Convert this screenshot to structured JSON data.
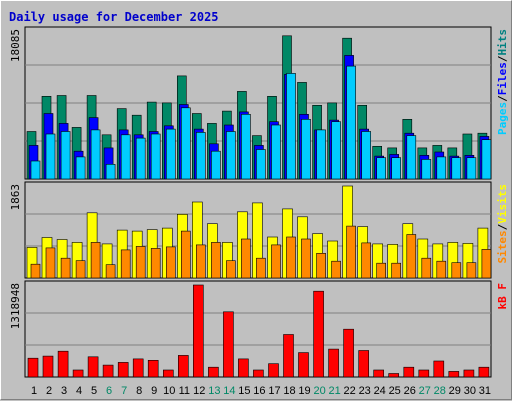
{
  "chart_data": [
    {
      "type": "bar",
      "title": "Daily usage for December 2025",
      "ymax_label": "18085",
      "categories": [
        "1",
        "2",
        "3",
        "4",
        "5",
        "6",
        "7",
        "8",
        "9",
        "10",
        "11",
        "12",
        "13",
        "14",
        "15",
        "16",
        "17",
        "18",
        "19",
        "20",
        "21",
        "22",
        "23",
        "24",
        "25",
        "26",
        "27",
        "28",
        "29",
        "30",
        "31"
      ],
      "weekend_days": [
        "6",
        "7",
        "13",
        "14",
        "20",
        "21",
        "27",
        "28"
      ],
      "legend": [
        {
          "text": "Pages",
          "color": "#00ccff"
        },
        {
          "text": "/",
          "color": "#000000"
        },
        {
          "text": "Files",
          "color": "#0000ff"
        },
        {
          "text": "/",
          "color": "#000000"
        },
        {
          "text": "Hits",
          "color": "#008080"
        }
      ],
      "ylim": [
        0,
        18085
      ],
      "series": [
        {
          "name": "Hits",
          "color": "#008866",
          "values": [
            5800,
            10100,
            10200,
            6300,
            10200,
            5400,
            8600,
            7800,
            9400,
            9300,
            12600,
            8000,
            6800,
            8300,
            10700,
            5300,
            10100,
            17500,
            11800,
            9000,
            9300,
            17200,
            9000,
            4000,
            3800,
            7300,
            3800,
            4100,
            3800,
            5500,
            5600
          ]
        },
        {
          "name": "Files",
          "color": "#0000ff",
          "values": [
            4100,
            8000,
            6800,
            3400,
            7500,
            3800,
            6000,
            5400,
            5800,
            6500,
            9100,
            6100,
            4300,
            6600,
            8200,
            4100,
            7000,
            12800,
            7900,
            6000,
            7200,
            15100,
            6100,
            2800,
            3000,
            5600,
            2900,
            3300,
            2800,
            2900,
            5200
          ]
        },
        {
          "name": "Pages",
          "color": "#00ccff",
          "values": [
            2200,
            5500,
            5800,
            2700,
            6000,
            1800,
            5400,
            5000,
            5500,
            6100,
            8700,
            5700,
            3400,
            5800,
            7900,
            3600,
            6600,
            12900,
            7300,
            6000,
            7000,
            13800,
            5800,
            2600,
            2600,
            5300,
            2400,
            2700,
            2600,
            2600,
            4800
          ]
        }
      ]
    },
    {
      "type": "bar",
      "ymax_label": "1863",
      "legend": [
        {
          "text": "Sites",
          "color": "#ff8800"
        },
        {
          "text": "/",
          "color": "#000000"
        },
        {
          "text": "Visits",
          "color": "#ffff00"
        }
      ],
      "ylim": [
        0,
        1863
      ],
      "series": [
        {
          "name": "Visits",
          "color": "#ffff00",
          "values": [
            620,
            820,
            780,
            720,
            1320,
            690,
            970,
            950,
            980,
            1010,
            1290,
            1540,
            1100,
            720,
            1340,
            1520,
            830,
            1400,
            1240,
            900,
            750,
            1863,
            1040,
            690,
            680,
            1100,
            790,
            690,
            720,
            700,
            1010
          ]
        },
        {
          "name": "Sites",
          "color": "#ff8800",
          "values": [
            280,
            610,
            400,
            350,
            720,
            270,
            570,
            640,
            600,
            630,
            950,
            670,
            720,
            350,
            790,
            400,
            670,
            830,
            790,
            500,
            340,
            1050,
            710,
            300,
            300,
            880,
            400,
            340,
            310,
            310,
            580
          ]
        }
      ]
    },
    {
      "type": "bar",
      "ymax_label": "1318948",
      "legend": [
        {
          "text": "kB F",
          "color": "#ff0000"
        }
      ],
      "ylim": [
        0,
        1318948
      ],
      "series": [
        {
          "name": "kB F",
          "color": "#ff0000",
          "values": [
            270000,
            300000,
            370000,
            100000,
            290000,
            170000,
            210000,
            260000,
            240000,
            100000,
            310000,
            1318948,
            140000,
            935000,
            260000,
            100000,
            190000,
            610000,
            350000,
            1230000,
            400000,
            685000,
            380000,
            100000,
            50000,
            140000,
            100000,
            230000,
            80000,
            100000,
            140000
          ]
        }
      ]
    }
  ]
}
